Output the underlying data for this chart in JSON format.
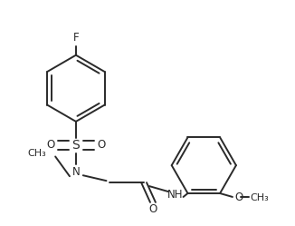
{
  "background_color": "#ffffff",
  "line_color": "#2a2a2a",
  "line_width": 1.4,
  "font_size": 8.5,
  "fig_width": 3.26,
  "fig_height": 2.49,
  "dpi": 100,
  "labels": {
    "F": "F",
    "S": "S",
    "N": "N",
    "O_carbonyl": "O",
    "NH": "NH",
    "OCH3": "OCH₃",
    "methyl": "CH₃"
  }
}
